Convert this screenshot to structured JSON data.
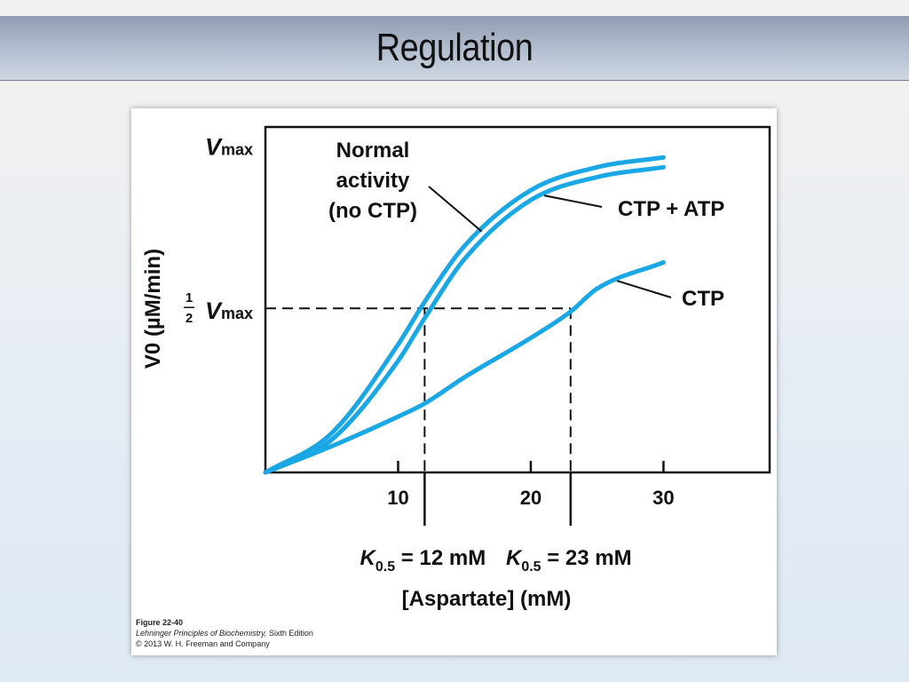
{
  "slide": {
    "title": "Regulation"
  },
  "caption": {
    "figure": "Figure 22-40",
    "book": "Lehninger Principles of Biochemistry,",
    "edition": " Sixth Edition",
    "copyright": "© 2013 W. H. Freeman and Company"
  },
  "colors": {
    "curve": "#1aa7e6",
    "axis": "#111111",
    "header_top": "#8f9bb1",
    "header_bottom": "#cfd7e3"
  },
  "chart_data": {
    "type": "line",
    "title": "",
    "xlabel": "[Aspartate] (mM)",
    "ylabel": "V0 (µM/min)",
    "xlim": [
      0,
      38
    ],
    "ylim": [
      0,
      1
    ],
    "x_ticks": [
      10,
      20,
      30
    ],
    "y_labels": {
      "top": {
        "italic": "V",
        "sub": "max"
      },
      "half": {
        "frac_num": "1",
        "frac_den": "2",
        "italic": "V",
        "sub": "max"
      }
    },
    "half_vmax": 0.5,
    "k_markers": [
      {
        "x": 12,
        "sym": "K",
        "sub": "0.5",
        "text": " = 12 mM"
      },
      {
        "x": 23,
        "sym": "K",
        "sub": "0.5",
        "text": " = 23 mM"
      }
    ],
    "series": [
      {
        "name": "Normal activity (no CTP)",
        "x": [
          0,
          5,
          10,
          12,
          15,
          20,
          25,
          30
        ],
        "y": [
          0,
          0.12,
          0.39,
          0.52,
          0.69,
          0.86,
          0.93,
          0.96
        ]
      },
      {
        "name": "CTP + ATP",
        "x": [
          0,
          5,
          10,
          12,
          15,
          20,
          25,
          30
        ],
        "y": [
          0,
          0.1,
          0.34,
          0.47,
          0.65,
          0.83,
          0.9,
          0.93
        ]
      },
      {
        "name": "CTP",
        "x": [
          0,
          5,
          10,
          12,
          15,
          20,
          23,
          25,
          30
        ],
        "y": [
          0,
          0.08,
          0.17,
          0.21,
          0.29,
          0.41,
          0.49,
          0.56,
          0.64
        ]
      }
    ],
    "annotations": [
      {
        "lines": [
          "Normal",
          "activity",
          "(no CTP)"
        ],
        "target": 0,
        "at_x": 16.3
      },
      {
        "lines": [
          "CTP + ATP"
        ],
        "target": 1,
        "at_x": 21
      },
      {
        "lines": [
          "CTP"
        ],
        "target": 2,
        "at_x": 26.5
      }
    ]
  }
}
